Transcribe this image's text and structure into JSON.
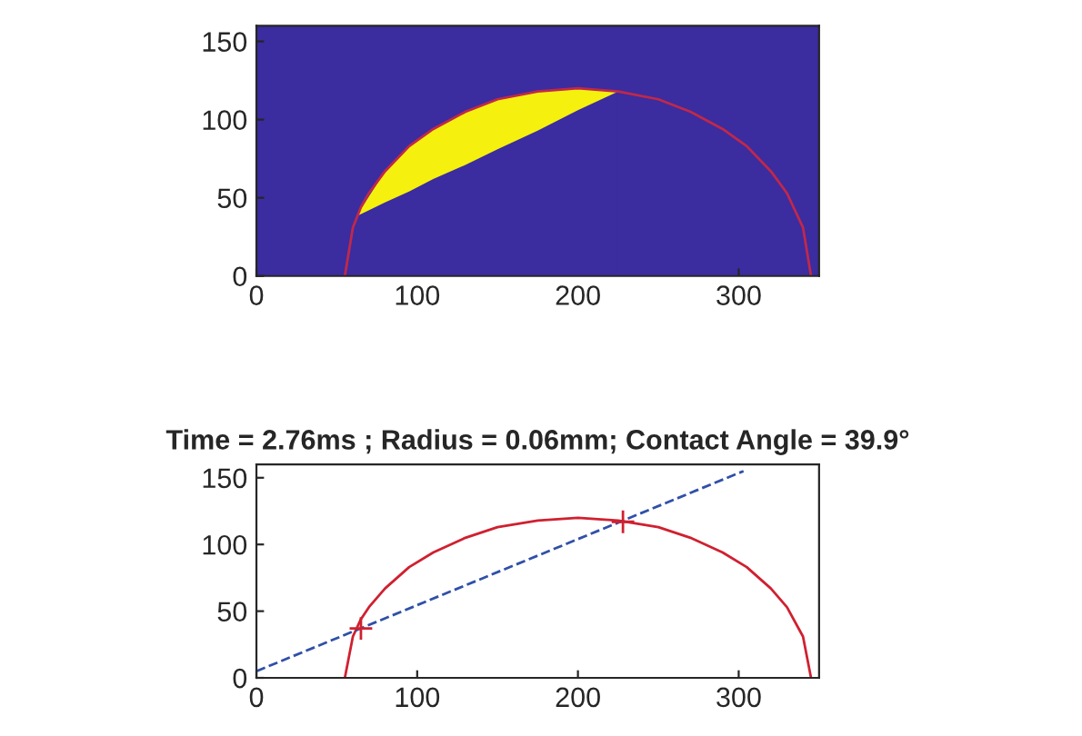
{
  "chart_data": [
    {
      "type": "line",
      "xlim": [
        0,
        350
      ],
      "ylim": [
        0,
        160
      ],
      "xticks": [
        0,
        100,
        200,
        300
      ],
      "yticks": [
        0,
        50,
        100,
        150
      ],
      "grid": false,
      "legend": false,
      "stacked": true,
      "bands": [
        {
          "axis": "y",
          "from": 0,
          "to": 160,
          "color": "#3b2ca0"
        }
      ],
      "series": [
        {
          "type": "area",
          "color": "#3b2ca0",
          "x": [
            62,
            80,
            95,
            110,
            130,
            150,
            175,
            200,
            225
          ],
          "values": [
            38,
            47,
            54,
            62,
            71,
            81,
            93,
            106,
            118
          ]
        },
        {
          "type": "area",
          "color": "#f5f00e",
          "x": [
            62,
            80,
            95,
            110,
            130,
            150,
            175,
            200,
            225
          ],
          "values": [
            0,
            20,
            29,
            32,
            34,
            32,
            25,
            14,
            0
          ]
        },
        {
          "color": "#c0284a",
          "x": [
            55,
            60,
            65,
            70,
            80,
            95,
            110,
            130,
            150,
            175,
            200,
            225,
            250,
            270,
            290,
            305,
            320,
            330,
            340,
            345
          ],
          "values": [
            0,
            31,
            44,
            53,
            67,
            83,
            94,
            105,
            113,
            118,
            120,
            118,
            113,
            105,
            94,
            83,
            67,
            53,
            31,
            0
          ]
        }
      ]
    },
    {
      "type": "line",
      "title": "Time = 2.76ms ; Radius = 0.06mm; Contact Angle = 39.9°",
      "xlim": [
        0,
        350
      ],
      "ylim": [
        0,
        160
      ],
      "xticks": [
        0,
        100,
        200,
        300
      ],
      "yticks": [
        0,
        50,
        100,
        150
      ],
      "grid": false,
      "legend": false,
      "series": [
        {
          "color": "#d02030",
          "x": [
            55,
            60,
            65,
            70,
            80,
            95,
            110,
            130,
            150,
            175,
            200,
            225,
            250,
            270,
            290,
            305,
            320,
            330,
            340,
            345
          ],
          "values": [
            0,
            31,
            44,
            53,
            67,
            83,
            94,
            105,
            113,
            118,
            120,
            118,
            113,
            105,
            94,
            83,
            67,
            53,
            31,
            0
          ]
        },
        {
          "type": "line",
          "color": "#3050a8",
          "line_style": "dashed",
          "x": [
            0,
            303
          ],
          "values": [
            5,
            155
          ]
        },
        {
          "type": "scatter",
          "color": "#d02030",
          "marker": "cross",
          "x": [
            65,
            228
          ],
          "values": [
            37,
            117
          ]
        }
      ]
    }
  ]
}
